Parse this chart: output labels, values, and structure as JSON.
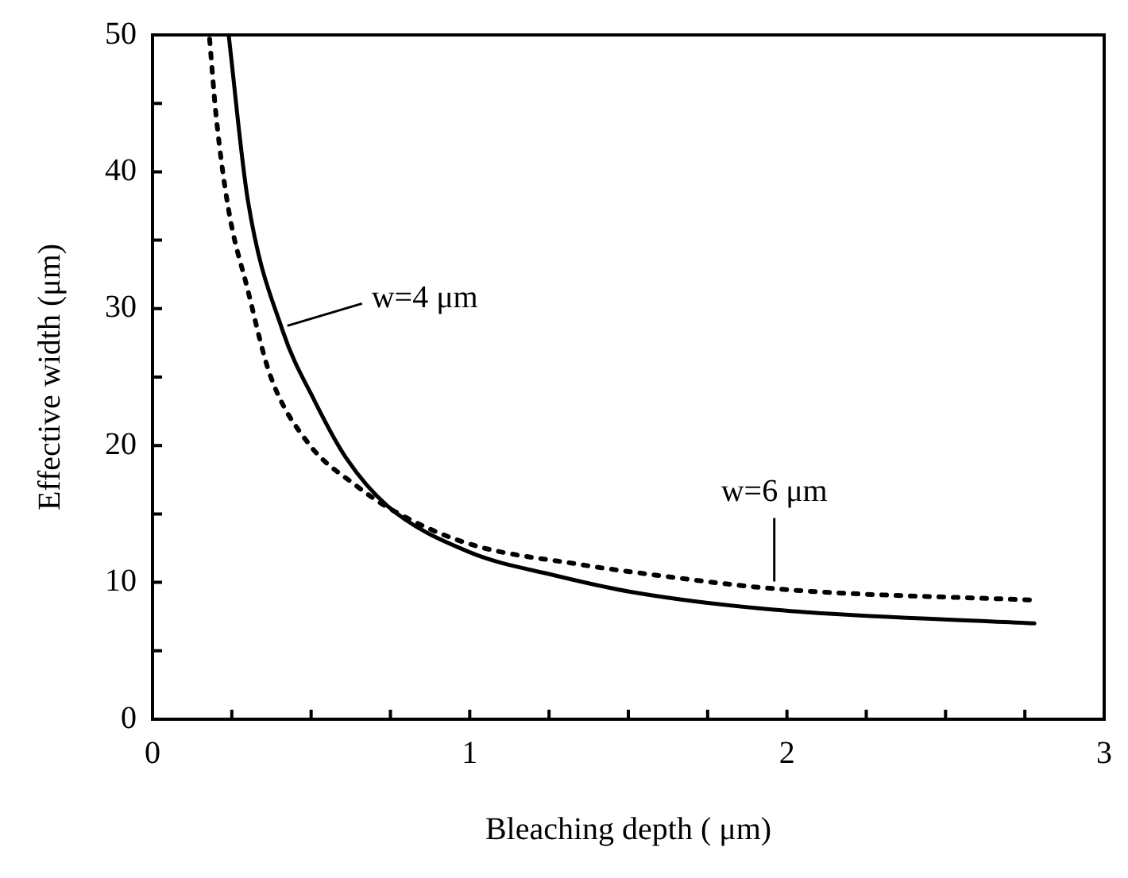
{
  "chart_data": {
    "type": "line",
    "xlabel": "Bleaching depth ( μm)",
    "ylabel": "Effective width (μm)",
    "xlim": [
      0,
      3
    ],
    "xticks": [
      0,
      {
        "value": 0.25,
        "label": null
      },
      {
        "value": 0.5,
        "label": null
      },
      {
        "value": 0.75,
        "label": null
      },
      1,
      {
        "value": 1.25,
        "label": null
      },
      {
        "value": 1.5,
        "label": null
      },
      {
        "value": 1.75,
        "label": null
      },
      2,
      {
        "value": 2.25,
        "label": null
      },
      {
        "value": 2.5,
        "label": null
      },
      {
        "value": 2.75,
        "label": null
      },
      3
    ],
    "ylim": [
      0,
      50
    ],
    "yticks": [
      0,
      {
        "value": 5,
        "label": null
      },
      10,
      {
        "value": 15,
        "label": null
      },
      20,
      {
        "value": 25,
        "label": null
      },
      30,
      {
        "value": 35,
        "label": null
      },
      40,
      {
        "value": 45,
        "label": null
      },
      50
    ],
    "grid": false,
    "legend": false,
    "marker": "none",
    "series": [
      {
        "color": "#000000",
        "line_style": "solid",
        "x": [
          0.24,
          0.3,
          0.41,
          0.51,
          0.61,
          0.74,
          1.0,
          1.27,
          1.51,
          1.96,
          2.78
        ],
        "values": [
          50,
          38.0,
          28.4,
          23.3,
          19.1,
          15.6,
          12.2,
          10.5,
          9.3,
          8.0,
          7.0
        ]
      },
      {
        "color": "#000000",
        "line_style": "dotted",
        "x": [
          0.18,
          0.2,
          0.24,
          0.3,
          0.37,
          0.49,
          0.64,
          0.77,
          1.0,
          1.35,
          1.53,
          1.98,
          2.78
        ],
        "values": [
          49.7,
          44.2,
          37.2,
          31.4,
          25.2,
          20.2,
          17.1,
          15.1,
          12.8,
          11.3,
          10.7,
          9.5,
          8.7
        ]
      }
    ],
    "annotations": [
      {
        "text": "w=4 μm",
        "x": 0.41,
        "y": 28.4
      },
      {
        "text": "w=6 μm",
        "x": 1.96,
        "y": 9.6
      }
    ]
  }
}
